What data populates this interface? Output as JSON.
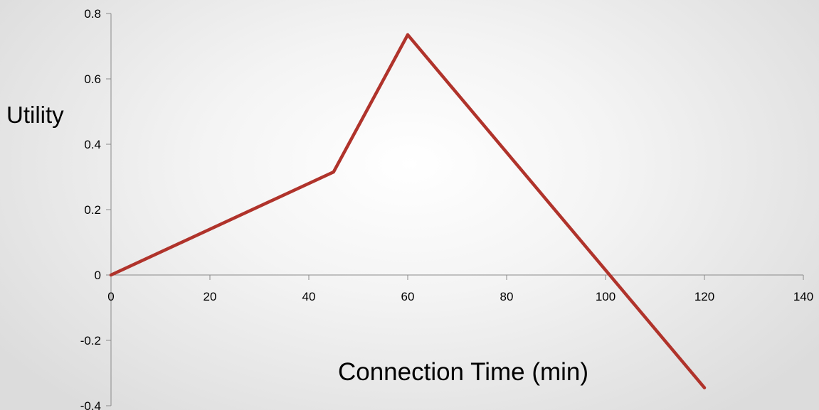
{
  "chart_data": {
    "type": "line",
    "title": "",
    "xlabel": "Connection Time  (min)",
    "ylabel": "Utility",
    "xlim": [
      0,
      140
    ],
    "ylim": [
      -0.4,
      0.8
    ],
    "x_ticks": [
      0,
      20,
      40,
      60,
      80,
      100,
      120,
      140
    ],
    "y_ticks": [
      -0.4,
      -0.2,
      0,
      0.2,
      0.4,
      0.6,
      0.8
    ],
    "x_tick_labels": [
      "0",
      "20",
      "40",
      "60",
      "80",
      "100",
      "120",
      "140"
    ],
    "y_tick_labels": [
      "-0.4",
      "-0.2",
      "0",
      "0.2",
      "0.4",
      "0.6",
      "0.8"
    ],
    "grid": false,
    "legend": "none",
    "series": [
      {
        "color": "#b0332b",
        "x": [
          0,
          45,
          60,
          120
        ],
        "y": [
          0,
          0.315,
          0.735,
          -0.345
        ]
      }
    ]
  }
}
